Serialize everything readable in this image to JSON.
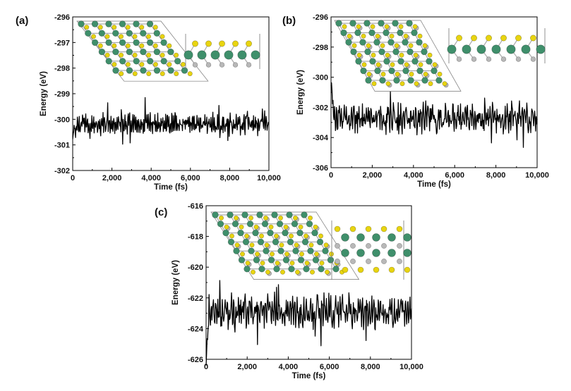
{
  "chart_data": [
    {
      "panel_label": "(a)",
      "type": "line",
      "xlabel": "Time (fs)",
      "ylabel": "Energy (eV)",
      "xlim": [
        0,
        10000
      ],
      "ylim": [
        -302,
        -296
      ],
      "xticks": [
        "0",
        "2,000",
        "4,000",
        "6,000",
        "8,000",
        "10,000"
      ],
      "yticks": [
        "-296",
        "-297",
        "-298",
        "-299",
        "-300",
        "-301",
        "-302"
      ],
      "series": [
        {
          "mean": -300.2,
          "amplitude": 0.35,
          "start": -300.6,
          "period_fs": 80,
          "x_range": [
            0,
            10000
          ]
        }
      ],
      "inset": {
        "top_view_rows": 6,
        "top_view_cols": 6,
        "side_view_metals": 5
      }
    },
    {
      "panel_label": "(b)",
      "type": "line",
      "xlabel": "Time (fs)",
      "ylabel": "Energy (eV)",
      "xlim": [
        0,
        10000
      ],
      "ylim": [
        -306,
        -296
      ],
      "xticks": [
        "0",
        "2,000",
        "4,000",
        "6,000",
        "8,000",
        "10,000"
      ],
      "yticks": [
        "-296",
        "-298",
        "-300",
        "-302",
        "-304",
        "-306"
      ],
      "series": [
        {
          "mean": -302.7,
          "amplitude": 0.75,
          "start": -300.2,
          "period_fs": 120,
          "x_range": [
            0,
            10000
          ]
        }
      ],
      "inset": {
        "top_view_rows": 7,
        "top_view_cols": 6,
        "side_view_metals": 6
      }
    },
    {
      "panel_label": "(c)",
      "type": "line",
      "xlabel": "Time (fs)",
      "ylabel": "Energy (eV)",
      "xlim": [
        0,
        10000
      ],
      "ylim": [
        -626,
        -616
      ],
      "xticks": [
        "0",
        "2,000",
        "4,000",
        "6,000",
        "8,000",
        "10,000"
      ],
      "yticks": [
        "-616",
        "-618",
        "-620",
        "-622",
        "-624",
        "-626"
      ],
      "series": [
        {
          "mean": -622.9,
          "amplitude": 0.85,
          "start": -626.0,
          "period_fs": 110,
          "x_range": [
            0,
            10000
          ]
        }
      ],
      "inset": {
        "top_view_rows": 7,
        "top_view_cols": 7,
        "side_view_metals": 4
      }
    }
  ],
  "colors": {
    "line": "#000000",
    "metal_atom": "#3f8f6b",
    "chalcogen_atom": "#e8d410",
    "substrate_atom": "#b8b8b8"
  }
}
